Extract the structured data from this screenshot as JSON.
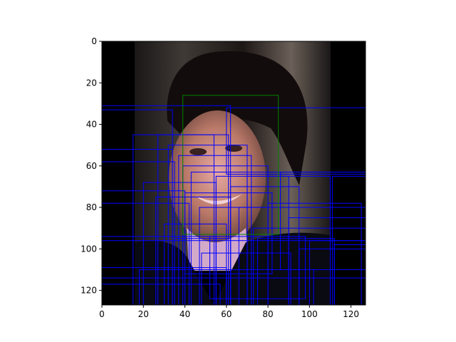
{
  "chart_data": {
    "type": "image",
    "title": "",
    "xlabel": "",
    "ylabel": "",
    "xlim": [
      0,
      127
    ],
    "ylim": [
      127,
      0
    ],
    "x_ticks": [
      0,
      20,
      40,
      60,
      80,
      100,
      120
    ],
    "y_ticks": [
      0,
      20,
      40,
      60,
      80,
      100,
      120
    ],
    "colors": {
      "face_box": "#008000",
      "candidate_box": "#0000ff",
      "background": "#000000"
    },
    "face_box": {
      "x0": 39,
      "y0": 26,
      "x1": 85,
      "y1": 93
    },
    "candidate_boxes": [
      [
        0,
        31,
        62,
        127
      ],
      [
        0,
        33,
        34,
        127
      ],
      [
        15,
        45,
        54,
        127
      ],
      [
        27,
        45,
        61,
        127
      ],
      [
        32,
        50,
        70,
        127
      ],
      [
        37,
        55,
        72,
        127
      ],
      [
        39,
        60,
        80,
        127
      ],
      [
        43,
        63,
        127,
        127
      ],
      [
        0,
        52,
        34,
        127
      ],
      [
        0,
        58,
        35,
        127
      ],
      [
        0,
        72,
        40,
        127
      ],
      [
        0,
        78,
        42,
        127
      ],
      [
        0,
        94,
        55,
        127
      ],
      [
        0,
        109,
        60,
        127
      ],
      [
        0,
        117,
        57,
        127
      ],
      [
        20,
        68,
        55,
        127
      ],
      [
        26,
        75,
        62,
        127
      ],
      [
        30,
        88,
        60,
        127
      ],
      [
        35,
        95,
        62,
        127
      ],
      [
        47,
        80,
        80,
        127
      ],
      [
        55,
        65,
        90,
        127
      ],
      [
        62,
        70,
        95,
        127
      ],
      [
        70,
        65,
        110,
        127
      ],
      [
        75,
        95,
        112,
        127
      ],
      [
        80,
        78,
        125,
        127
      ],
      [
        86,
        63,
        127,
        110
      ],
      [
        90,
        85,
        127,
        127
      ],
      [
        95,
        100,
        127,
        127
      ],
      [
        100,
        96,
        127,
        127
      ],
      [
        111,
        65,
        127,
        127
      ],
      [
        112,
        98,
        127,
        127
      ],
      [
        60,
        32,
        127,
        64
      ],
      [
        66,
        80,
        127,
        127
      ],
      [
        73,
        90,
        127,
        127
      ],
      [
        48,
        102,
        91,
        127
      ],
      [
        0,
        96,
        127,
        127
      ],
      [
        0,
        114,
        127,
        127
      ],
      [
        18,
        110,
        102,
        127
      ],
      [
        52,
        94,
        98,
        124
      ],
      [
        40,
        73,
        82,
        112
      ]
    ]
  }
}
